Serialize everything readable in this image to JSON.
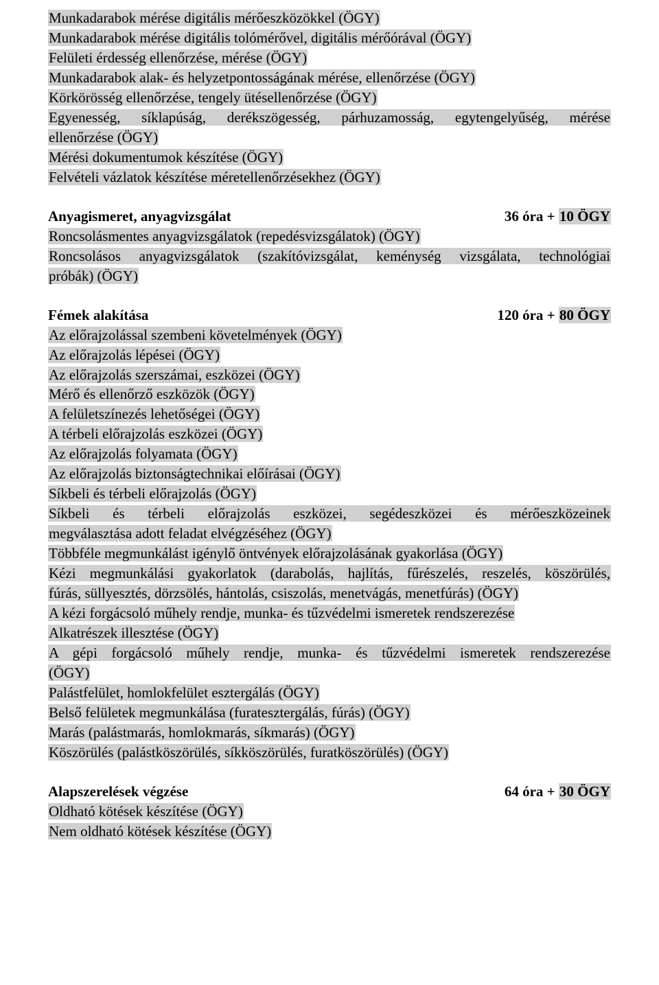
{
  "colors": {
    "highlight": "#d0d0d0",
    "text": "#000000",
    "background": "#ffffff"
  },
  "typography": {
    "font_family": "Palatino Linotype, Book Antiqua, Palatino, Georgia, serif",
    "font_size_pt": 16,
    "line_height": 1.38,
    "heading_weight": "bold"
  },
  "block1": {
    "l1": "Munkadarabok mérése digitális mérőeszközökkel (ÖGY)",
    "l2": "Munkadarabok mérése digitális tolómérővel, digitális mérőórával (ÖGY)",
    "l3": "Felületi érdesség ellenőrzése, mérése (ÖGY)",
    "l4": "Munkadarabok alak- és helyzetpontosságának mérése, ellenőrzése (ÖGY)",
    "l5": "Körkörösség ellenőrzése, tengely ütésellenőrzése (ÖGY)",
    "l6a": "Egyenesség, síklapúság, derékszögesség, párhuzamosság, egytengelyűség, mérése",
    "l6b": "ellenőrzése (ÖGY)",
    "l7": "Mérési dokumentumok készítése (ÖGY)",
    "l8": "Felvételi vázlatok készítése méretellenőrzésekhez (ÖGY)"
  },
  "section2": {
    "title": "Anyagismeret, anyagvizsgálat",
    "hours_prefix": "36 óra + ",
    "hours_hl": "10 ÖGY",
    "l1": "Roncsolásmentes anyagvizsgálatok (repedésvizsgálatok) (ÖGY)",
    "l2a": "Roncsolásos anyagvizsgálatok (szakítóvizsgálat, keménység vizsgálata, technológiai",
    "l2b": "próbák) (ÖGY)"
  },
  "section3": {
    "title": "Fémek alakítása",
    "hours_prefix": "120 óra + ",
    "hours_hl": "80 ÖGY",
    "l1": "Az előrajzolással szembeni követelmények (ÖGY)",
    "l2": "Az előrajzolás lépései (ÖGY)",
    "l3": "Az előrajzolás szerszámai, eszközei (ÖGY)",
    "l4": "Mérő és ellenőrző eszközök (ÖGY)",
    "l5": "A felületszínezés lehetőségei (ÖGY)",
    "l6": "A térbeli előrajzolás eszközei (ÖGY)",
    "l7": "Az előrajzolás folyamata (ÖGY)",
    "l8": "Az előrajzolás biztonságtechnikai előírásai (ÖGY)",
    "l9": "Síkbeli és térbeli előrajzolás (ÖGY)",
    "l10a": "Síkbeli és térbeli előrajzolás eszközei, segédeszközei és mérőeszközeinek",
    "l10b": "megválasztása adott feladat elvégzéséhez (ÖGY)",
    "l11": "Többféle megmunkálást igénylő öntvények előrajzolásának gyakorlása (ÖGY)",
    "l12a": "Kézi megmunkálási gyakorlatok (darabolás, hajlítás, fűrészelés, reszelés, köszörülés,",
    "l12b": "fúrás, süllyesztés, dörzsölés, hántolás, csiszolás, menetvágás, menetfúrás) (ÖGY)",
    "l13": "A kézi forgácsoló műhely rendje, munka- és tűzvédelmi ismeretek rendszerezése",
    "l14": "Alkatrészek illesztése (ÖGY)",
    "l15a": "A gépi forgácsoló műhely rendje, munka- és tűzvédelmi ismeretek rendszerezése",
    "l15b": "(ÖGY)",
    "l16": "Palástfelület, homlokfelület esztergálás (ÖGY)",
    "l17": "Belső felületek megmunkálása (furatesztergálás, fúrás) (ÖGY)",
    "l18": "Marás (palástmarás, homlokmarás, síkmarás) (ÖGY)",
    "l19": "Köszörülés (palástköszörülés, síkköszörülés, furatköszörülés) (ÖGY)"
  },
  "section4": {
    "title": "Alapszerelések végzése",
    "hours_prefix": "64 óra + ",
    "hours_hl": "30 ÖGY",
    "l1": "Oldható kötések készítése (ÖGY)",
    "l2": "Nem oldható kötések készítése (ÖGY)"
  }
}
